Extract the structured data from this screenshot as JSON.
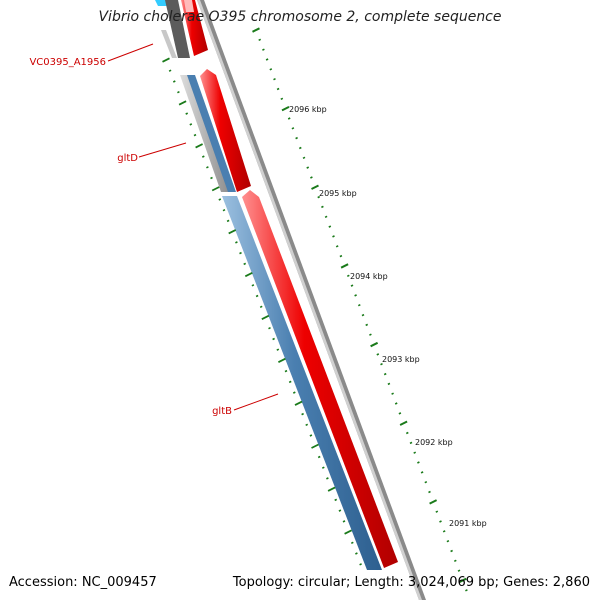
{
  "title": "Vibrio cholerae O395 chromosome 2, complete sequence",
  "footer": {
    "accession": "Accession: NC_009457",
    "summary": "Topology: circular; Length: 3,024,069 bp; Genes: 2,860"
  },
  "gene_labels": [
    "VC0395_A1956",
    "gltD",
    "gltB"
  ],
  "scale_labels": [
    "2096 kbp",
    "2095 kbp",
    "2094 kbp",
    "2093 kbp",
    "2092 kbp",
    "2091 kbp"
  ],
  "colors": {
    "label": "#cc0000",
    "forward_cds": "#ee0000",
    "reverse_cds": "#4a7fb0",
    "tick": "#1a7a1a",
    "backbone": "#888888",
    "gray_feature": "#666666",
    "cyan_feature": "#33ccff"
  }
}
